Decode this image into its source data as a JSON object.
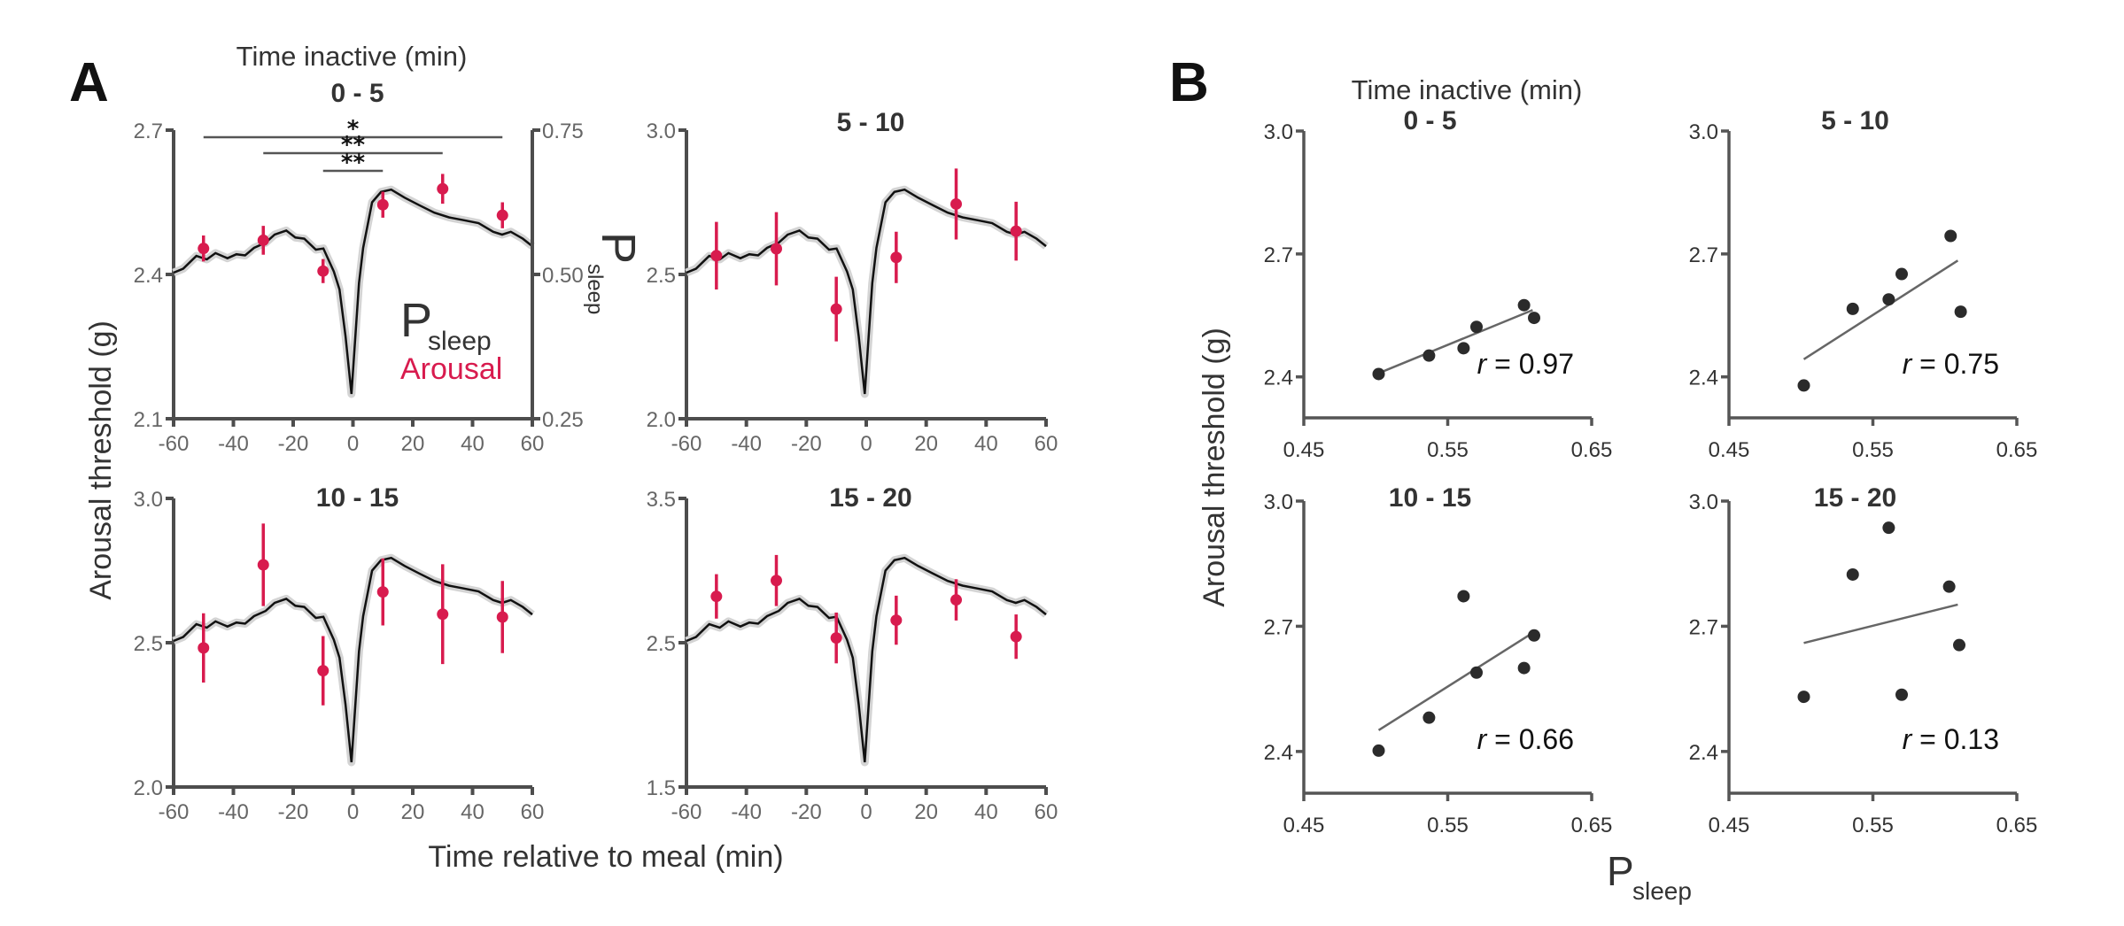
{
  "figure": {
    "panel_a_letter": "A",
    "panel_b_letter": "B",
    "group_title": "Time inactive (min)",
    "a_ylabel": "Arousal threshold (g)",
    "a_xlabel": "Time relative to meal (min)",
    "a_right_label_main": "P",
    "a_right_label_sub": "sleep",
    "legend": {
      "psleep_main": "P",
      "psleep_sub": "sleep",
      "arousal": "Arousal"
    },
    "b_ylabel": "Arousal threshold (g)",
    "b_xlabel_main": "P",
    "b_xlabel_sub": "sleep",
    "colors": {
      "arousal": "#d81b4e",
      "psleep": "#111111",
      "band": "#d4d4d4",
      "scatter": "#2b2b2b",
      "regression": "#666666"
    }
  },
  "chart_data": [
    {
      "type": "line",
      "panel": "A",
      "title": "0 - 5",
      "xlabel": "Time relative to meal (min)",
      "ylabel": "Arousal threshold (g)",
      "xlim": [
        -60,
        60
      ],
      "xticks": [
        "-60",
        "-40",
        "-20",
        "0",
        "20",
        "40",
        "60"
      ],
      "ylim": [
        2.1,
        2.7
      ],
      "yticks": [
        "2.1",
        "2.4",
        "2.7"
      ],
      "right_axis": {
        "label": "Psleep",
        "ylim": [
          0.25,
          0.75
        ],
        "yticks": [
          "0.25",
          "0.50",
          "0.75"
        ]
      },
      "arousal": {
        "x": [
          -50,
          -30,
          -10,
          10,
          30,
          50
        ],
        "y": [
          2.454,
          2.471,
          2.407,
          2.545,
          2.578,
          2.523
        ],
        "err": [
          0.027,
          0.03,
          0.025,
          0.027,
          0.031,
          0.027
        ]
      },
      "significance": [
        {
          "x1": -50,
          "x2": 50,
          "label": "*"
        },
        {
          "x1": -30,
          "x2": 30,
          "label": "**"
        },
        {
          "x1": -10,
          "x2": 10,
          "label": "**"
        }
      ]
    },
    {
      "type": "line",
      "panel": "A",
      "title": "5 - 10",
      "xlim": [
        -60,
        60
      ],
      "xticks": [
        "-60",
        "-40",
        "-20",
        "0",
        "20",
        "40",
        "60"
      ],
      "ylim": [
        2.0,
        3.0
      ],
      "yticks": [
        "2.0",
        "2.5",
        "3.0"
      ],
      "arousal": {
        "x": [
          -50,
          -30,
          -10,
          10,
          30,
          50
        ],
        "y": [
          2.565,
          2.589,
          2.38,
          2.559,
          2.744,
          2.65
        ],
        "err": [
          0.117,
          0.127,
          0.112,
          0.089,
          0.123,
          0.102
        ]
      }
    },
    {
      "type": "line",
      "panel": "A",
      "title": "10 - 15",
      "xlim": [
        -60,
        60
      ],
      "xticks": [
        "-60",
        "-40",
        "-20",
        "0",
        "20",
        "40",
        "60"
      ],
      "ylim": [
        2.0,
        3.0
      ],
      "yticks": [
        "2.0",
        "2.5",
        "3.0"
      ],
      "arousal": {
        "x": [
          -50,
          -30,
          -10,
          10,
          30,
          50
        ],
        "y": [
          2.482,
          2.77,
          2.403,
          2.676,
          2.599,
          2.589
        ],
        "err": [
          0.12,
          0.143,
          0.12,
          0.116,
          0.173,
          0.125
        ]
      }
    },
    {
      "type": "line",
      "panel": "A",
      "title": "15 - 20",
      "xlim": [
        -60,
        60
      ],
      "xticks": [
        "-60",
        "-40",
        "-20",
        "0",
        "20",
        "40",
        "60"
      ],
      "ylim": [
        1.5,
        3.5
      ],
      "yticks": [
        "1.5",
        "2.5",
        "3.5"
      ],
      "arousal": {
        "x": [
          -50,
          -30,
          -10,
          10,
          30,
          50
        ],
        "y": [
          2.821,
          2.931,
          2.533,
          2.656,
          2.797,
          2.542
        ],
        "err": [
          0.154,
          0.177,
          0.176,
          0.17,
          0.143,
          0.154
        ]
      }
    },
    {
      "type": "scatter",
      "panel": "B",
      "title": "0 - 5",
      "xlabel": "Psleep",
      "ylabel": "Arousal threshold (g)",
      "xlim": [
        0.45,
        0.65
      ],
      "xticks": [
        "0.45",
        "0.55",
        "0.65"
      ],
      "ylim": [
        2.3,
        3.0
      ],
      "yticks": [
        "2.4",
        "2.7",
        "3.0"
      ],
      "x": [
        0.502,
        0.537,
        0.561,
        0.57,
        0.603,
        0.61
      ],
      "y": [
        2.407,
        2.452,
        2.47,
        2.522,
        2.575,
        2.544
      ],
      "fit": {
        "x": [
          0.502,
          0.609
        ],
        "y": [
          2.409,
          2.563
        ]
      },
      "r_label": "r",
      "r_value": "= 0.97"
    },
    {
      "type": "scatter",
      "panel": "B",
      "title": "5 - 10",
      "xlim": [
        0.45,
        0.65
      ],
      "xticks": [
        "0.45",
        "0.55",
        "0.65"
      ],
      "ylim": [
        2.3,
        3.0
      ],
      "yticks": [
        "2.4",
        "2.7",
        "3.0"
      ],
      "x": [
        0.502,
        0.536,
        0.561,
        0.57,
        0.604,
        0.611
      ],
      "y": [
        2.379,
        2.566,
        2.589,
        2.651,
        2.744,
        2.559
      ],
      "fit": {
        "x": [
          0.502,
          0.609
        ],
        "y": [
          2.443,
          2.684
        ]
      },
      "r_label": "r",
      "r_value": "= 0.75"
    },
    {
      "type": "scatter",
      "panel": "B",
      "title": "10 - 15",
      "xlim": [
        0.45,
        0.65
      ],
      "xticks": [
        "0.45",
        "0.55",
        "0.65"
      ],
      "ylim": [
        2.3,
        3.0
      ],
      "yticks": [
        "2.4",
        "2.7",
        "3.0"
      ],
      "x": [
        0.502,
        0.537,
        0.561,
        0.57,
        0.603,
        0.61
      ],
      "y": [
        2.402,
        2.481,
        2.772,
        2.589,
        2.6,
        2.678
      ],
      "fit": {
        "x": [
          0.502,
          0.609
        ],
        "y": [
          2.451,
          2.684
        ]
      },
      "r_label": "r",
      "r_value": "= 0.66"
    },
    {
      "type": "scatter",
      "panel": "B",
      "title": "15 - 20",
      "xlim": [
        0.45,
        0.65
      ],
      "xticks": [
        "0.45",
        "0.55",
        "0.65"
      ],
      "ylim": [
        2.3,
        3.0
      ],
      "yticks": [
        "2.4",
        "2.7",
        "3.0"
      ],
      "x": [
        0.502,
        0.536,
        0.561,
        0.57,
        0.603,
        0.61
      ],
      "y": [
        2.531,
        2.824,
        2.936,
        2.536,
        2.795,
        2.655
      ],
      "fit": {
        "x": [
          0.502,
          0.609
        ],
        "y": [
          2.66,
          2.752
        ]
      },
      "r_label": "r",
      "r_value": "= 0.13"
    }
  ],
  "psleep_curve": {
    "x": [
      -60,
      -56.8,
      -52.4,
      -48.9,
      -46.0,
      -42.0,
      -39.0,
      -36.1,
      -33.1,
      -29.2,
      -26.2,
      -22.3,
      -19.3,
      -16.3,
      -12.4,
      -9.9,
      -6.4,
      -4.5,
      -2.5,
      -0.5,
      2.0,
      3.4,
      6.4,
      9.4,
      12.8,
      17.3,
      22.2,
      27.2,
      32.1,
      37.0,
      42.0,
      46.9,
      49.9,
      52.8,
      56.8,
      60
    ],
    "y": [
      0.503,
      0.51,
      0.532,
      0.526,
      0.537,
      0.528,
      0.535,
      0.533,
      0.546,
      0.555,
      0.569,
      0.576,
      0.564,
      0.562,
      0.543,
      0.545,
      0.505,
      0.474,
      0.393,
      0.293,
      0.485,
      0.546,
      0.625,
      0.643,
      0.647,
      0.633,
      0.62,
      0.607,
      0.599,
      0.594,
      0.589,
      0.574,
      0.569,
      0.574,
      0.562,
      0.549
    ],
    "ylim": [
      0.25,
      0.75
    ]
  }
}
